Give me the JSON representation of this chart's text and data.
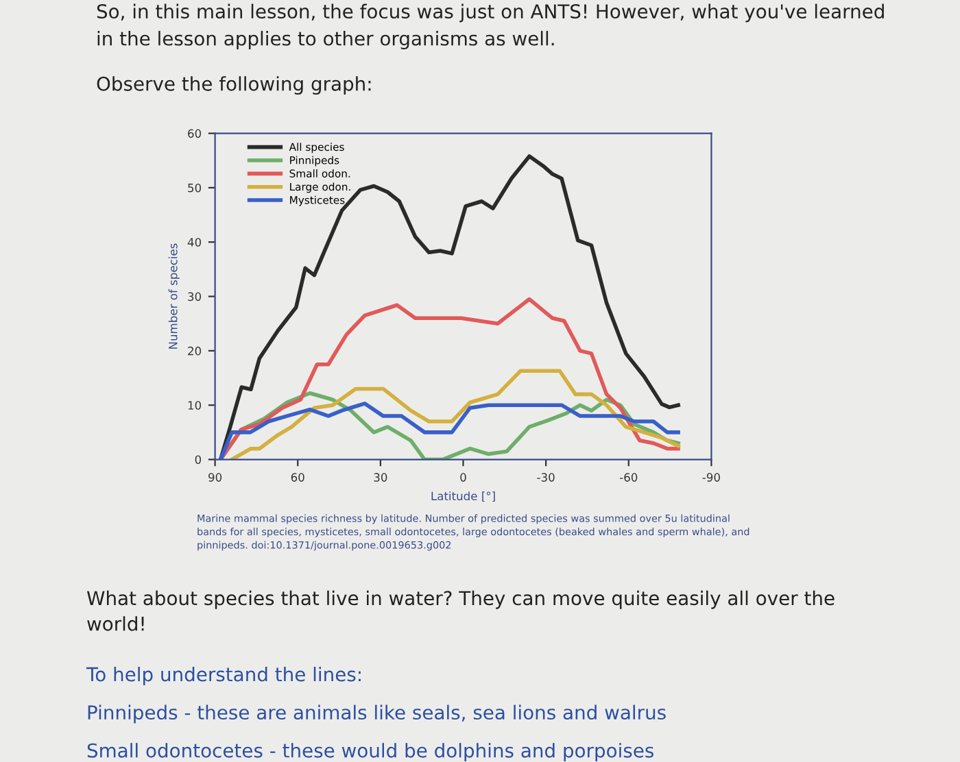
{
  "chart_data": {
    "type": "line",
    "title": "So, in this main lesson, the focus was just on ANTS! However, what you've learned\nin the lesson applies to other organisms as well.",
    "subtitle": "Observe the following graph:",
    "xlabel": "Latitude [°]",
    "ylabel": "Number of species",
    "xlim": [
      90,
      -90
    ],
    "xticks": [
      90,
      60,
      30,
      0,
      -30,
      -60,
      -90
    ],
    "ylim": [
      0,
      60
    ],
    "yticks": [
      0,
      10,
      20,
      30,
      40,
      50,
      60
    ],
    "grid": false,
    "legend": "top left",
    "marker": "none",
    "line_style": "solid",
    "series": [
      {
        "name": "All species",
        "color": "#2b2b2b",
        "x": [
          88,
          84.5,
          80.4,
          77,
          73.9,
          67.2,
          60.6,
          57.3,
          54,
          50.6,
          44,
          37.3,
          32.4,
          27.4,
          23.2,
          17.4,
          12.4,
          8.3,
          4.1,
          -0.9,
          -6.7,
          -10.8,
          -17.5,
          -24,
          -29,
          -32.4,
          -35.7,
          -41.6,
          -46.5,
          -52,
          -59,
          -65.6,
          -72,
          -74.8,
          -78
        ],
        "values": [
          0,
          6,
          13.3,
          12.9,
          18.6,
          23.7,
          28,
          35.2,
          33.9,
          38,
          45.8,
          49.6,
          50.3,
          49.2,
          47.5,
          41,
          38.1,
          38.4,
          37.9,
          46.6,
          47.5,
          46.2,
          51.7,
          55.8,
          54,
          52.5,
          51.7,
          40.3,
          39.4,
          28.8,
          19.5,
          15.3,
          10.2,
          9.6,
          10
        ]
      },
      {
        "name": "Pinnipeds",
        "color": "#6fae6a",
        "x": [
          88,
          80.5,
          72.2,
          63.9,
          55.6,
          47.3,
          40.7,
          32.4,
          27.4,
          19,
          14,
          7.4,
          -2.5,
          -9.2,
          -15.8,
          -24,
          -30.8,
          -37.4,
          -42.4,
          -46.5,
          -52,
          -57,
          -62,
          -69,
          -74,
          -78
        ],
        "values": [
          0,
          5.5,
          7.5,
          10.5,
          12.2,
          11,
          9,
          5,
          6,
          3.5,
          0,
          0,
          2,
          1,
          1.5,
          6,
          7.2,
          8.5,
          10,
          9,
          11,
          10,
          6.5,
          5,
          3.5,
          3
        ]
      },
      {
        "name": "Small odon.",
        "color": "#e05a5a",
        "x": [
          88,
          80.5,
          73.9,
          65.6,
          59,
          53,
          48.9,
          42.3,
          35.7,
          24,
          17.4,
          0.8,
          -12.5,
          -24,
          -32.4,
          -36.6,
          -42.4,
          -46.5,
          -52,
          -57,
          -64,
          -69,
          -74,
          -78
        ],
        "values": [
          0,
          5.5,
          6.5,
          9.5,
          11,
          17.5,
          17.5,
          23,
          26.5,
          28.4,
          26,
          26,
          25,
          29.5,
          26,
          25.5,
          20,
          19.5,
          12,
          9.5,
          3.5,
          3,
          2,
          2
        ]
      },
      {
        "name": "Large odon.",
        "color": "#d4b040",
        "x": [
          83.9,
          77,
          73.9,
          67.2,
          62.2,
          54,
          47.3,
          39,
          29,
          19,
          12.4,
          4.1,
          -2.5,
          -12.5,
          -20.8,
          -29,
          -35,
          -40.7,
          -46.5,
          -52,
          -59,
          -65.6,
          -72,
          -78
        ],
        "values": [
          0,
          2,
          2,
          4.5,
          6,
          9.5,
          10,
          13,
          13,
          9,
          7,
          7,
          10.5,
          12,
          16.3,
          16.3,
          16.3,
          12,
          12,
          10,
          6,
          5,
          4,
          2.5
        ]
      },
      {
        "name": "Mysticetes",
        "color": "#3a5fc9",
        "x": [
          88,
          83.9,
          77.2,
          70.6,
          63.9,
          55.6,
          48.9,
          44,
          35.7,
          29,
          22.4,
          14,
          4.1,
          -2.5,
          -9.2,
          -24,
          -35.7,
          -42.4,
          -57,
          -62,
          -69,
          -74,
          -78
        ],
        "values": [
          0,
          5,
          5,
          7,
          8,
          9.2,
          8,
          9,
          10.3,
          8,
          8,
          5,
          5,
          9.5,
          10,
          10,
          10,
          8,
          8,
          7,
          7,
          5,
          5
        ]
      }
    ],
    "annotations": [
      "Marine mammal species richness by latitude. Number of predicted species was summed over 5u latitudinal\nbands for all species, mysticetes, small odontocetes, large odontocetes (beaked whales and sperm whale), and\npinnipeds. doi:10.1371/journal.pone.0019653.g002",
      "What about species that live in water? They can move quite easily all over the\nworld!",
      "To help understand the lines:",
      "Pinnipeds - these are animals like seals, sea lions and walrus",
      "Small odontocetes - these would be dolphins and porpoises"
    ]
  }
}
